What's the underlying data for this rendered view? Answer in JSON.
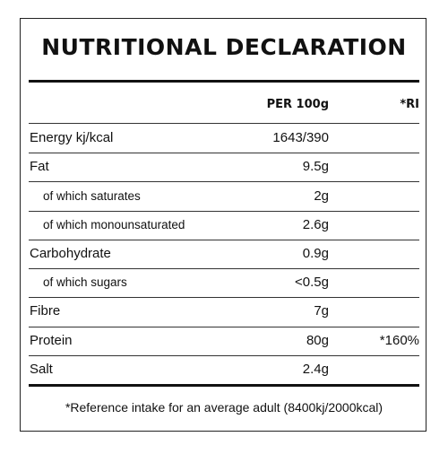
{
  "header": {
    "title": "NUTRITIONAL DECLARATION"
  },
  "table": {
    "columns": [
      "PER 100g",
      "*RI"
    ],
    "rows": [
      {
        "label": "Energy kj/kcal",
        "per_100g": "1643/390"
      },
      {
        "label": "Fat",
        "per_100g": "9.5g",
        "sub_rows": [
          {
            "label": "of which saturates",
            "per_100g": "2g"
          },
          {
            "label": "of which monounsaturated",
            "per_100g": "2.6g"
          }
        ]
      },
      {
        "label": "Carbohydrate",
        "per_100g": "0.9g",
        "sub_rows": [
          {
            "label": "of which sugars",
            "per_100g": "<0.5g"
          }
        ]
      },
      {
        "label": "Fibre",
        "per_100g": "7g"
      },
      {
        "label": "Protein",
        "per_100g": "80g",
        "ri": "*160%"
      },
      {
        "label": "Salt",
        "per_100g": "2.4g"
      }
    ]
  },
  "footnote": "*Reference intake for an average adult (8400kj/2000kcal)"
}
